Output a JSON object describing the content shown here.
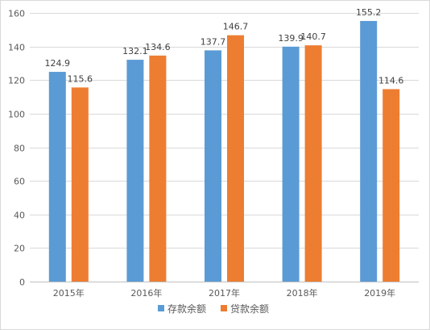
{
  "chart_data": {
    "type": "bar",
    "title": "",
    "xlabel": "",
    "ylabel": "",
    "categories": [
      "2015年",
      "2016年",
      "2017年",
      "2018年",
      "2019年"
    ],
    "series": [
      {
        "name": "存款余额",
        "color": "#5b9bd5",
        "values": [
          124.9,
          132.1,
          137.7,
          139.9,
          155.2
        ],
        "labels": [
          "124.9",
          "132.1",
          "137.7",
          "139.9",
          "155.2"
        ]
      },
      {
        "name": "贷款余额",
        "color": "#ed7d31",
        "values": [
          115.6,
          134.6,
          146.7,
          140.7,
          114.6
        ],
        "labels": [
          "115.6",
          "134.6",
          "146.7",
          "140.7",
          "114.6"
        ]
      }
    ],
    "ylim": [
      0,
      160
    ],
    "yticks": [
      0,
      20,
      40,
      60,
      80,
      100,
      120,
      140,
      160
    ],
    "ytick_labels": [
      "0",
      "20",
      "40",
      "60",
      "80",
      "100",
      "120",
      "140",
      "160"
    ],
    "grid": true,
    "gridline_color": "#d9d9d9",
    "legend_position": "bottom"
  }
}
